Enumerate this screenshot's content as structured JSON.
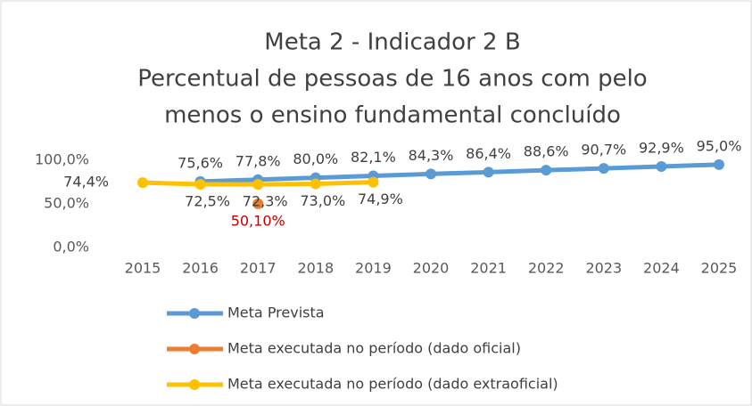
{
  "chart_data": {
    "type": "line",
    "title": [
      "Meta 2 - Indicador 2 B",
      "Percentual de pessoas de 16 anos com pelo",
      "menos o ensino fundamental concluído"
    ],
    "categories": [
      "2015",
      "2016",
      "2017",
      "2018",
      "2019",
      "2020",
      "2021",
      "2022",
      "2023",
      "2024",
      "2025"
    ],
    "series": [
      {
        "name": "Meta Prevista",
        "color": "#5b9bd5",
        "values": [
          null,
          75.6,
          77.8,
          80.0,
          82.1,
          84.3,
          86.4,
          88.6,
          90.7,
          92.9,
          95.0
        ],
        "value_labels": [
          null,
          "75,6%",
          "77,8%",
          "80,0%",
          "82,1%",
          "84,3%",
          "86,4%",
          "88,6%",
          "90,7%",
          "92,9%",
          "95,0%"
        ]
      },
      {
        "name": "Meta executada no período (dado oficial)",
        "color": "#ed7d31",
        "label_color": "#c00000",
        "values": [
          null,
          null,
          50.1,
          null,
          null,
          null,
          null,
          null,
          null,
          null,
          null
        ],
        "value_labels": [
          null,
          null,
          "50,10%",
          null,
          null,
          null,
          null,
          null,
          null,
          null,
          null
        ]
      },
      {
        "name": "Meta executada no período (dado extraoficial)",
        "color": "#ffc000",
        "values": [
          74.4,
          72.5,
          72.3,
          73.0,
          74.9,
          null,
          null,
          null,
          null,
          null,
          null
        ],
        "value_labels": [
          "74,4%",
          "72,5%",
          "72,3%",
          "73,0%",
          "74,9%",
          null,
          null,
          null,
          null,
          null,
          null
        ]
      }
    ],
    "ylim": [
      0,
      100
    ],
    "yticks": [
      {
        "value": 0,
        "label": "0,0%"
      },
      {
        "value": 50,
        "label": "50,0%"
      },
      {
        "value": 100,
        "label": "100,0%"
      }
    ],
    "grid": false,
    "legend": "bottom"
  }
}
